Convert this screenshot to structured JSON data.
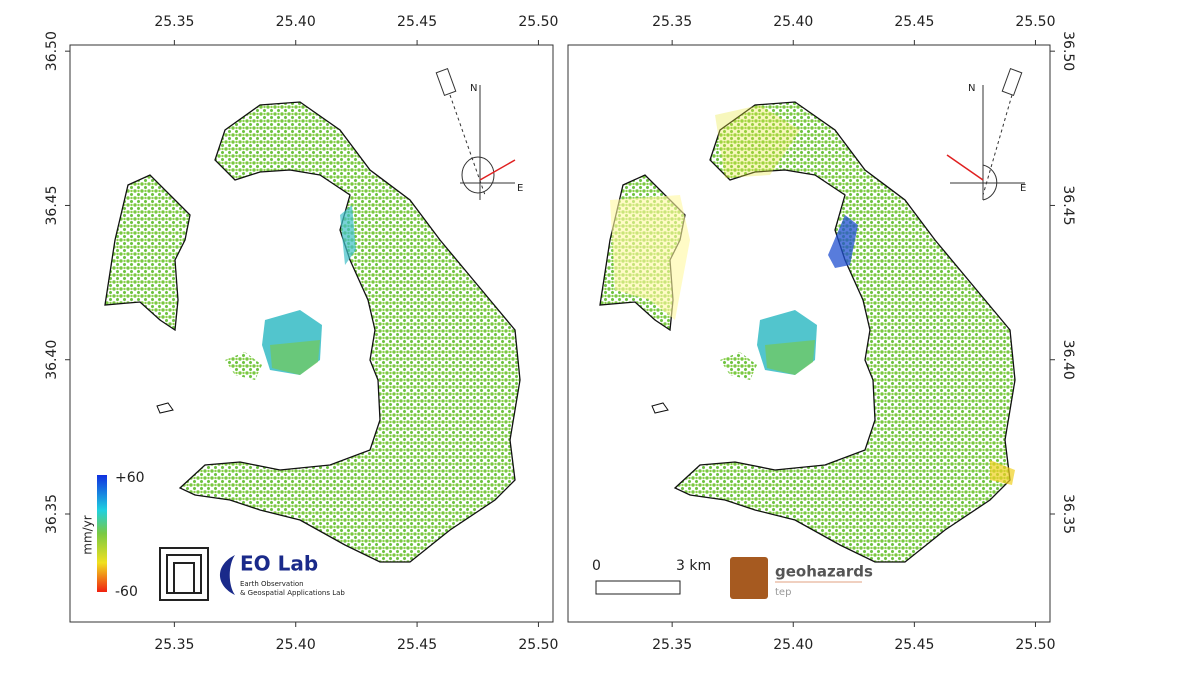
{
  "axes": {
    "xlim": [
      25.307,
      25.506
    ],
    "ylim": [
      36.315,
      36.502
    ],
    "xticks": [
      {
        "value": 25.35,
        "label": "25.35"
      },
      {
        "value": 25.4,
        "label": "25.40"
      },
      {
        "value": 25.45,
        "label": "25.45"
      },
      {
        "value": 25.5,
        "label": "25.50"
      }
    ],
    "yticks": [
      {
        "value": 36.35,
        "label": "36.35"
      },
      {
        "value": 36.4,
        "label": "36.40"
      },
      {
        "value": 36.45,
        "label": "36.45"
      },
      {
        "value": 36.5,
        "label": "36.50"
      }
    ]
  },
  "legend": {
    "max": "+60",
    "min": "-60",
    "unit": "mm/yr"
  },
  "compass": {
    "north": "N",
    "east": "E"
  },
  "logos": {
    "eolab": "EO Lab",
    "eolab_line_1": "Earth Observation",
    "eolab_line_2": "& Geospatial Applications Lab",
    "geohazards": "geohazards",
    "tep": "tep"
  },
  "scale_bar": {
    "start": "0",
    "end": "3 km"
  }
}
